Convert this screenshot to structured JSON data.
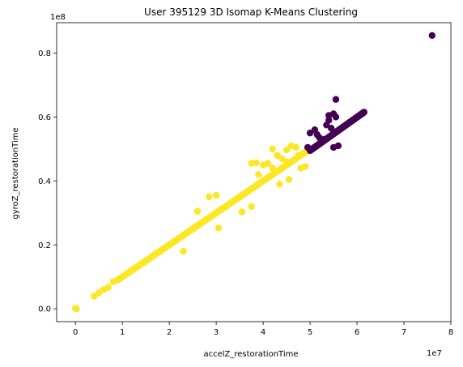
{
  "chart_data": {
    "type": "scatter",
    "title": "User 395129 3D Isomap K-Means Clustering",
    "xlabel": "accelZ_restorationTime",
    "ylabel": "gyroZ_restorationTime",
    "x_multiplier": "1e7",
    "y_multiplier": "1e8",
    "xlim": [
      -0.4,
      8.0
    ],
    "ylim": [
      -0.04,
      0.895
    ],
    "x_ticks": [
      0,
      1,
      2,
      3,
      4,
      5,
      6,
      7,
      8
    ],
    "y_ticks": [
      0.0,
      0.2,
      0.4,
      0.6,
      0.8
    ],
    "x_tick_labels": [
      "0",
      "1",
      "2",
      "3",
      "4",
      "5",
      "6",
      "7",
      "8"
    ],
    "y_tick_labels": [
      "0.0",
      "0.2",
      "0.4",
      "0.6",
      "0.8"
    ],
    "grid": false,
    "legend": "none",
    "colors": {
      "cluster_1": "#fde725",
      "cluster_0": "#440154"
    },
    "series": [
      {
        "cluster": 1,
        "color": "#fde725",
        "trend": {
          "x_start": 0.9,
          "x_end": 5.0,
          "y_start": 0.09,
          "y_end": 0.5
        },
        "points": [
          [
            0.0,
            0.002
          ],
          [
            0.02,
            0.0
          ],
          [
            0.4,
            0.04
          ],
          [
            0.5,
            0.05
          ],
          [
            0.6,
            0.06
          ],
          [
            0.7,
            0.067
          ],
          [
            0.8,
            0.085
          ],
          [
            0.9,
            0.09
          ],
          [
            1.0,
            0.1
          ],
          [
            2.3,
            0.18
          ],
          [
            2.6,
            0.305
          ],
          [
            2.85,
            0.35
          ],
          [
            3.0,
            0.355
          ],
          [
            3.05,
            0.253
          ],
          [
            3.55,
            0.303
          ],
          [
            3.75,
            0.32
          ],
          [
            3.75,
            0.455
          ],
          [
            3.85,
            0.457
          ],
          [
            3.9,
            0.42
          ],
          [
            4.0,
            0.45
          ],
          [
            4.1,
            0.455
          ],
          [
            4.2,
            0.44
          ],
          [
            4.2,
            0.5
          ],
          [
            4.3,
            0.48
          ],
          [
            4.35,
            0.39
          ],
          [
            4.4,
            0.47
          ],
          [
            4.5,
            0.46
          ],
          [
            4.5,
            0.497
          ],
          [
            4.55,
            0.405
          ],
          [
            4.6,
            0.51
          ],
          [
            4.7,
            0.505
          ],
          [
            4.8,
            0.44
          ],
          [
            4.9,
            0.445
          ],
          [
            4.75,
            0.48
          ]
        ]
      },
      {
        "cluster": 0,
        "color": "#440154",
        "trend": {
          "x_start": 5.0,
          "x_end": 6.15,
          "y_start": 0.495,
          "y_end": 0.615
        },
        "points": [
          [
            4.95,
            0.505
          ],
          [
            5.0,
            0.55
          ],
          [
            5.1,
            0.56
          ],
          [
            5.15,
            0.545
          ],
          [
            5.2,
            0.535
          ],
          [
            5.3,
            0.53
          ],
          [
            5.35,
            0.575
          ],
          [
            5.4,
            0.59
          ],
          [
            5.4,
            0.605
          ],
          [
            5.45,
            0.565
          ],
          [
            5.5,
            0.61
          ],
          [
            5.55,
            0.655
          ],
          [
            5.5,
            0.505
          ],
          [
            5.6,
            0.51
          ],
          [
            5.55,
            0.6
          ],
          [
            7.6,
            0.855
          ]
        ]
      }
    ]
  }
}
